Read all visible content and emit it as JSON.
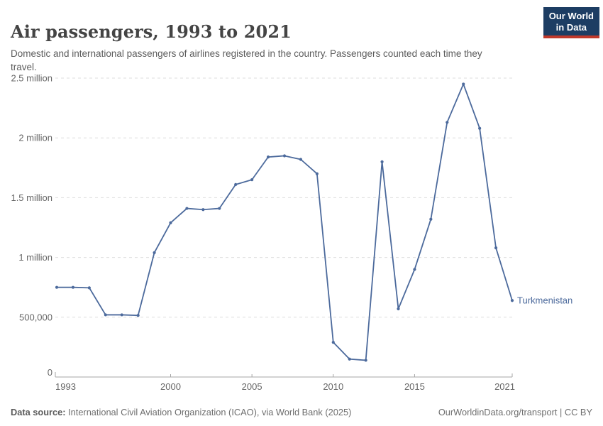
{
  "header": {
    "title": "Air passengers, 1993 to 2021",
    "subtitle": "Domestic and international passengers of airlines registered in the country. Passengers counted each time they travel.",
    "logo_line1": "Our World",
    "logo_line2": "in Data"
  },
  "chart_data": {
    "type": "line",
    "title": "Air passengers, 1993 to 2021",
    "entity": "Turkmenistan",
    "x": [
      1993,
      1994,
      1995,
      1996,
      1997,
      1998,
      1999,
      2000,
      2001,
      2002,
      2003,
      2004,
      2005,
      2006,
      2007,
      2008,
      2009,
      2010,
      2011,
      2012,
      2013,
      2014,
      2015,
      2016,
      2017,
      2018,
      2019,
      2020,
      2021
    ],
    "series": [
      {
        "name": "Turkmenistan",
        "values_millions": [
          0.75,
          0.75,
          0.746,
          0.52,
          0.52,
          0.515,
          1.04,
          1.29,
          1.41,
          1.4,
          1.41,
          1.61,
          1.65,
          1.84,
          1.85,
          1.82,
          1.7,
          0.29,
          0.15,
          0.14,
          1.8,
          0.57,
          0.9,
          1.32,
          2.13,
          2.45,
          2.08,
          1.08,
          0.64
        ]
      }
    ],
    "unit": "passengers",
    "xlabel": "",
    "ylabel": "",
    "ylim": [
      0,
      2.5
    ],
    "grid": true,
    "legend_position": "right-of-line-end",
    "y_ticks": [
      {
        "value": 0,
        "label": "0"
      },
      {
        "value": 0.5,
        "label": "500,000"
      },
      {
        "value": 1,
        "label": "1 million"
      },
      {
        "value": 1.5,
        "label": "1.5 million"
      },
      {
        "value": 2,
        "label": "2 million"
      },
      {
        "value": 2.5,
        "label": "2.5 million"
      }
    ],
    "x_ticks": [
      {
        "year": 1993,
        "label": "1993"
      },
      {
        "year": 2000,
        "label": "2000"
      },
      {
        "year": 2005,
        "label": "2005"
      },
      {
        "year": 2010,
        "label": "2010"
      },
      {
        "year": 2015,
        "label": "2015"
      },
      {
        "year": 2021,
        "label": "2021"
      }
    ],
    "line_color": "#4C6A9C",
    "gridline_color": "#dddddd",
    "axis_color": "#a5a5a5"
  },
  "footer": {
    "source_label": "Data source:",
    "source_text": " International Civil Aviation Organization (ICAO), via World Bank (2025)",
    "right_text": "OurWorldinData.org/transport | CC BY"
  },
  "colors": {
    "logo_bg": "#1d3d63",
    "logo_stripe": "#c0392b",
    "title_text": "#444444",
    "subtitle_text": "#5b5b5b",
    "axis_text": "#666666"
  }
}
